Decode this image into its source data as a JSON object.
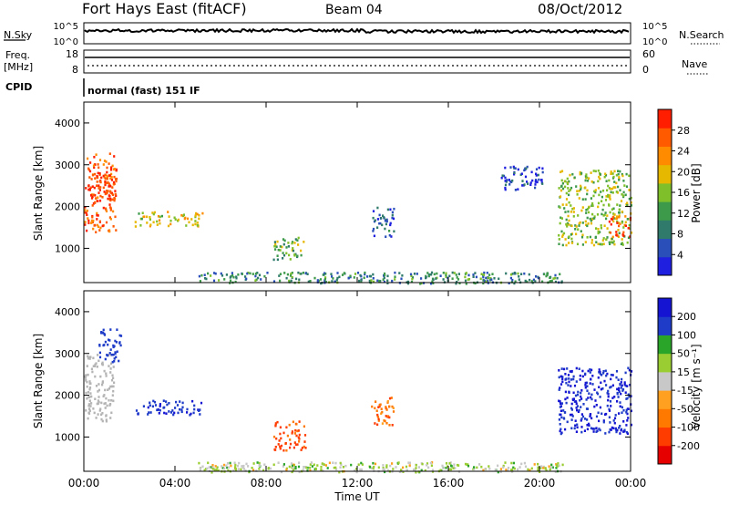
{
  "header": {
    "station": "Fort Hays East (fitACF)",
    "beam": "Beam 04",
    "date": "08/Oct/2012"
  },
  "top_panels": {
    "nsky_label": "N.Sky",
    "nsky_ticks": [
      "10^5",
      "10^0"
    ],
    "nsearch_label": "N.Search",
    "nsearch_ticks": [
      "10^5",
      "10^0"
    ],
    "freq_label": "Freq.",
    "freq_unit": "[MHz]",
    "freq_ticks": [
      "18",
      "8"
    ],
    "nave_label": "Nave",
    "nave_ticks": [
      "60",
      "0"
    ],
    "cpid_label": "CPID",
    "cpid_value": "normal (fast) 151 IF"
  },
  "colors": {
    "power_scale": [
      "#1f1fe0",
      "#2a4fb8",
      "#2f7a6a",
      "#3d9a4a",
      "#7fbf2a",
      "#e6b800",
      "#ff8c00",
      "#ff5a00",
      "#ff1e00"
    ],
    "velocity_scale": [
      "#e60000",
      "#ff3c00",
      "#ff7800",
      "#ffa020",
      "#c8c8c8",
      "#9acd32",
      "#2aa52a",
      "#1e3cc8",
      "#1414d2"
    ],
    "ground_scatter": "#b4b4b4"
  },
  "chart_data": [
    {
      "type": "heatmap",
      "name": "power",
      "ylabel": "Slant Range [km]",
      "colorbar_label": "Power [dB]",
      "colorbar_ticks": [
        "28",
        "24",
        "20",
        "16",
        "12",
        "8",
        "4"
      ],
      "x_ticks": [
        "00:00",
        "04:00",
        "08:00",
        "12:00",
        "16:00",
        "20:00",
        "00:00"
      ],
      "y_ticks": [
        "4000",
        "3000",
        "2000",
        "1000"
      ],
      "xlim_hours": [
        0,
        24
      ],
      "ylim_km": [
        180,
        4500
      ],
      "regions": [
        {
          "t0": 0.0,
          "t1": 1.4,
          "r0": 1400,
          "r1": 3300,
          "level": 26
        },
        {
          "t0": 0.2,
          "t1": 1.3,
          "r0": 2200,
          "r1": 2900,
          "level": 30
        },
        {
          "t0": 2.2,
          "t1": 5.2,
          "r0": 1550,
          "r1": 1900,
          "level": 18
        },
        {
          "t0": 8.3,
          "t1": 9.7,
          "r0": 750,
          "r1": 1300,
          "level": 14
        },
        {
          "t0": 12.6,
          "t1": 13.6,
          "r0": 1300,
          "r1": 2000,
          "level": 6
        },
        {
          "t0": 18.3,
          "t1": 20.2,
          "r0": 2400,
          "r1": 3000,
          "level": 4
        },
        {
          "t0": 20.8,
          "t1": 24.0,
          "r0": 1100,
          "r1": 2900,
          "level": 16
        },
        {
          "t0": 23.0,
          "t1": 24.0,
          "r0": 1300,
          "r1": 1800,
          "level": 26
        },
        {
          "t0": 5.0,
          "t1": 21.0,
          "r0": 180,
          "r1": 450,
          "level": 10
        }
      ]
    },
    {
      "type": "heatmap",
      "name": "velocity",
      "ylabel": "Slant Range [km]",
      "xlabel": "Time UT",
      "colorbar_label": "Velocity [m s⁻¹]",
      "colorbar_ticks": [
        "200",
        "100",
        "50",
        "15",
        "-15",
        "-50",
        "-100",
        "-200"
      ],
      "x_ticks": [
        "00:00",
        "04:00",
        "08:00",
        "12:00",
        "16:00",
        "20:00",
        "00:00"
      ],
      "y_ticks": [
        "4000",
        "3000",
        "2000",
        "1000"
      ],
      "xlim_hours": [
        0,
        24
      ],
      "ylim_km": [
        180,
        4500
      ],
      "regions": [
        {
          "t0": 0.0,
          "t1": 1.3,
          "r0": 1400,
          "r1": 3000,
          "level": 0
        },
        {
          "t0": 0.6,
          "t1": 1.6,
          "r0": 2800,
          "r1": 3600,
          "level": 150
        },
        {
          "t0": 2.2,
          "t1": 5.2,
          "r0": 1550,
          "r1": 1900,
          "level": 180
        },
        {
          "t0": 8.3,
          "t1": 9.7,
          "r0": 700,
          "r1": 1400,
          "level": -120
        },
        {
          "t0": 12.6,
          "t1": 13.6,
          "r0": 1300,
          "r1": 2000,
          "level": -80
        },
        {
          "t0": 20.8,
          "t1": 24.0,
          "r0": 1100,
          "r1": 2700,
          "level": 200
        },
        {
          "t0": 5.0,
          "t1": 21.0,
          "r0": 180,
          "r1": 420,
          "level": 20
        }
      ]
    }
  ]
}
